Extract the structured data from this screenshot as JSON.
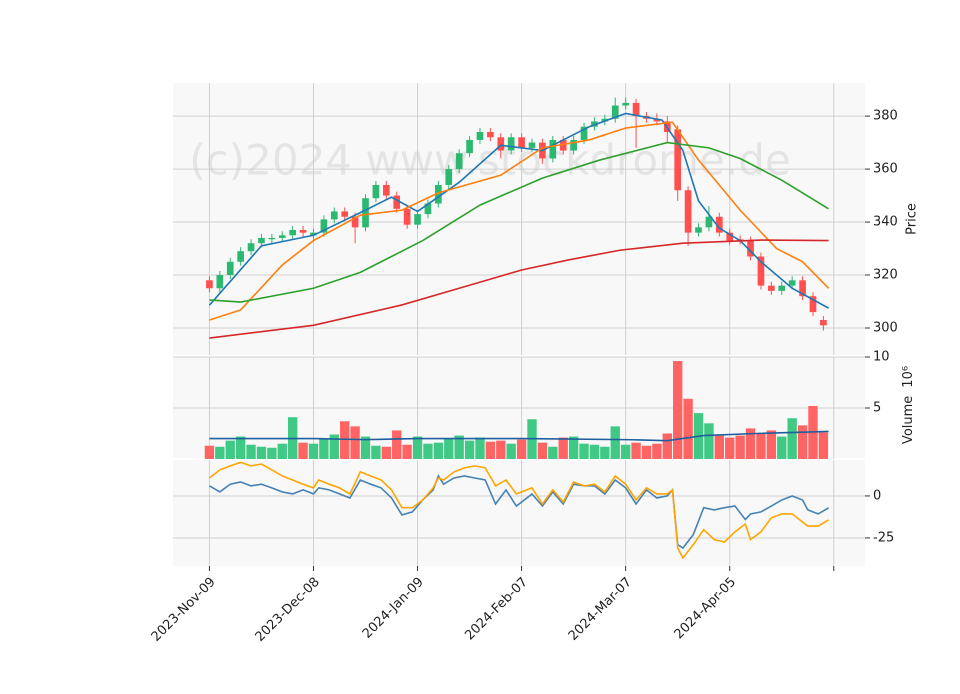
{
  "watermark": "(c)2024 www.stockdrome.de",
  "chart_data": [
    {
      "type": "candlestick",
      "ylabel": "Price",
      "up_color": "#2db872",
      "down_color": "#ff4f4f",
      "xlim": [
        -7,
        126
      ],
      "ylim": [
        289.8,
        392.5
      ],
      "yticks": [
        300,
        320,
        340,
        360,
        380
      ],
      "grid": true,
      "x": [
        0,
        2,
        4,
        6,
        8,
        10,
        12,
        14,
        16,
        18,
        20,
        22,
        24,
        26,
        28,
        30,
        32,
        34,
        36,
        38,
        40,
        42,
        44,
        46,
        48,
        50,
        52,
        54,
        56,
        58,
        60,
        62,
        64,
        66,
        68,
        70,
        72,
        74,
        76,
        78,
        80,
        82,
        84,
        86,
        88,
        90,
        92,
        94,
        96,
        98,
        100,
        102,
        104,
        106,
        108,
        110,
        112,
        114,
        116,
        118
      ],
      "open": [
        318,
        315,
        320,
        325,
        329,
        332,
        333.5,
        334,
        335,
        337,
        335,
        336,
        341,
        344,
        342,
        338,
        349,
        354,
        350,
        345,
        339,
        343,
        347,
        354,
        360,
        366,
        371,
        374,
        372,
        367,
        372,
        368,
        370,
        364,
        371,
        367,
        371,
        376,
        378,
        379,
        384,
        385,
        380,
        379,
        378,
        375,
        352,
        336,
        338,
        342,
        336,
        333.5,
        333,
        327,
        316,
        314,
        316,
        318,
        312,
        303
      ],
      "high": [
        319.5,
        321.5,
        326.5,
        330.5,
        333.5,
        335.5,
        335.5,
        336.5,
        338.5,
        338.5,
        337.5,
        342.5,
        345.5,
        345.5,
        343.5,
        350.5,
        355.5,
        355.5,
        351.5,
        346.5,
        344.5,
        348.5,
        355.5,
        361.5,
        367.5,
        372.5,
        375.5,
        375.5,
        373.5,
        373.5,
        373.5,
        371.5,
        371.5,
        372.5,
        372.5,
        372.5,
        377.5,
        379.5,
        380.5,
        387,
        387,
        386.5,
        381.5,
        381,
        380,
        376.5,
        353.5,
        339.5,
        346,
        343.5,
        337.5,
        335,
        334.5,
        328.5,
        317.5,
        317.5,
        319.5,
        319.5,
        313.5,
        304.5
      ],
      "low": [
        313.5,
        313.5,
        318.5,
        323.5,
        327.5,
        330.5,
        332,
        332.5,
        333.5,
        334.5,
        333.5,
        334.5,
        339.5,
        340.5,
        332,
        336.5,
        347.5,
        348.5,
        343.5,
        337.5,
        337.5,
        341.5,
        345.5,
        352.5,
        358.5,
        364.5,
        369.5,
        370.5,
        364,
        365.5,
        366.5,
        366.5,
        362,
        362.5,
        365.5,
        365.5,
        369.5,
        374.5,
        376.5,
        377.5,
        382.5,
        368,
        377.5,
        376.5,
        370,
        348,
        331,
        334.5,
        336.5,
        334.5,
        331.5,
        331.5,
        325.5,
        314.5,
        312.5,
        312.5,
        314.5,
        310.5,
        304.5,
        299
      ],
      "close": [
        315,
        320,
        325,
        329,
        332,
        334,
        334,
        335,
        337,
        336,
        336,
        341,
        344,
        342,
        338,
        349,
        354,
        350,
        345,
        339,
        343,
        347,
        354,
        360,
        366,
        371,
        374,
        372,
        367,
        372,
        368,
        370,
        364,
        371,
        367,
        371,
        376,
        378,
        379,
        384,
        385,
        380,
        379,
        378,
        374,
        352,
        336,
        338,
        342,
        336,
        333,
        333,
        327,
        316,
        314,
        316,
        318,
        312,
        306,
        301
      ],
      "lines": [
        {
          "color": "#1f77b4",
          "x": [
            0,
            10,
            20,
            30,
            35,
            40,
            48,
            56,
            64,
            73,
            80,
            87,
            91,
            94,
            98,
            102,
            106,
            112,
            119
          ],
          "values": [
            308.6,
            331,
            335,
            344.5,
            349.4,
            344,
            355,
            369,
            367,
            376,
            381,
            378.5,
            367,
            348,
            337.7,
            333,
            325,
            315,
            307.5
          ]
        },
        {
          "color": "#ff7f0e",
          "x": [
            0,
            6,
            14,
            20,
            29,
            37,
            44,
            56,
            64,
            73,
            80,
            89,
            94,
            102,
            109,
            114,
            119
          ],
          "values": [
            303,
            306.8,
            323.8,
            333,
            342.6,
            344.5,
            351,
            357.7,
            368,
            371,
            375.5,
            377.7,
            363.4,
            344.5,
            330,
            325,
            315
          ]
        },
        {
          "color": "#2ca02c",
          "x": [
            0,
            6,
            20,
            29,
            41,
            52,
            64,
            75,
            88,
            96,
            102,
            110,
            119
          ],
          "values": [
            310.6,
            309.8,
            315,
            321,
            333,
            346.4,
            356.6,
            363.4,
            370,
            368,
            364,
            355.8,
            345
          ]
        },
        {
          "color": "#d62728",
          "x": [
            0,
            20,
            37,
            48,
            60,
            69,
            79,
            91,
            106,
            119
          ],
          "values": [
            296.2,
            301,
            308.7,
            315,
            321.9,
            325.7,
            329.4,
            332,
            333.2,
            333
          ]
        }
      ]
    },
    {
      "type": "bar",
      "ylabel": "Volume",
      "offset_label": "10⁶",
      "up_color": "#3fc985",
      "down_color": "#ff6464",
      "xlim": [
        -7,
        126
      ],
      "ylim": [
        0,
        10
      ],
      "yticks": [
        5,
        10
      ],
      "grid": true,
      "x": [
        0,
        2,
        4,
        6,
        8,
        10,
        12,
        14,
        16,
        18,
        20,
        22,
        24,
        26,
        28,
        30,
        32,
        34,
        36,
        38,
        40,
        42,
        44,
        46,
        48,
        50,
        52,
        54,
        56,
        58,
        60,
        62,
        64,
        66,
        68,
        70,
        72,
        74,
        76,
        78,
        80,
        82,
        84,
        86,
        88,
        90,
        92,
        94,
        96,
        98,
        100,
        102,
        104,
        106,
        108,
        110,
        112,
        114,
        116,
        118
      ],
      "values": [
        1.3,
        1.2,
        1.8,
        2.2,
        1.4,
        1.2,
        1.1,
        1.5,
        4.1,
        1.6,
        1.5,
        2.0,
        2.4,
        3.7,
        3.2,
        2.2,
        1.3,
        1.2,
        2.8,
        1.4,
        2.2,
        1.5,
        1.6,
        2.0,
        2.3,
        1.8,
        2.1,
        1.7,
        1.8,
        1.5,
        1.9,
        3.9,
        1.6,
        1.2,
        2.1,
        2.2,
        1.5,
        1.4,
        1.2,
        3.2,
        1.4,
        1.6,
        1.3,
        1.5,
        2.5,
        9.6,
        5.9,
        4.5,
        3.5,
        2.3,
        2.1,
        2.3,
        3.0,
        2.5,
        2.8,
        2.2,
        4.0,
        3.3,
        5.2,
        2.6
      ],
      "lines": [
        {
          "color": "#1f5fa0",
          "x": [
            0,
            20,
            30,
            40,
            60,
            80,
            88,
            95,
            105,
            119
          ],
          "values": [
            2.0,
            2.0,
            1.9,
            2.0,
            2.0,
            1.9,
            1.8,
            2.3,
            2.5,
            2.7
          ]
        }
      ]
    },
    {
      "type": "line",
      "xlim": [
        -7,
        126
      ],
      "ylim": [
        -41.7,
        21.4
      ],
      "yticks": [
        0,
        -25
      ],
      "grid": true,
      "xticks": [
        {
          "value": 0,
          "label": "2023-Nov-09"
        },
        {
          "value": 20,
          "label": "2023-Dec-08"
        },
        {
          "value": 40,
          "label": "2024-Jan-09"
        },
        {
          "value": 60,
          "label": "2024-Feb-07"
        },
        {
          "value": 80,
          "label": "2024-Mar-07"
        },
        {
          "value": 100,
          "label": "2024-Apr-05"
        },
        {
          "value": 120,
          "label": null
        }
      ],
      "x": [
        0,
        2,
        4,
        6,
        8,
        10,
        12,
        14,
        16,
        18,
        20,
        21,
        23,
        25,
        27,
        29,
        31,
        33,
        35,
        37,
        39,
        41,
        43,
        44,
        45,
        47,
        49,
        51,
        53,
        55,
        57,
        59,
        62,
        64,
        66,
        68,
        70,
        72,
        74,
        76,
        78,
        80,
        82,
        84,
        86,
        88,
        89,
        90,
        91,
        93,
        95,
        97,
        99,
        101,
        103,
        104,
        106,
        108,
        110,
        112,
        114,
        115,
        117,
        119
      ],
      "series": [
        {
          "color": "#4682b4",
          "values": [
            6,
            2.4,
            7,
            8.3,
            6,
            7,
            4.8,
            2.4,
            1.2,
            3.6,
            1.2,
            4.8,
            3.6,
            1.2,
            -1.2,
            9.5,
            7,
            4.8,
            -1.2,
            -11.3,
            -9.5,
            -2.4,
            3.6,
            11.9,
            7,
            10.7,
            11.9,
            10.7,
            9.5,
            -4.8,
            3.6,
            -6,
            1.2,
            -6,
            2.4,
            -4.8,
            7,
            6,
            6,
            1.2,
            9.5,
            4.8,
            -4.8,
            3.6,
            -1.2,
            0,
            3.6,
            -29,
            -31,
            -23,
            -7,
            -8.3,
            -7,
            -6,
            -14,
            -10.7,
            -9.5,
            -6,
            -2.4,
            0,
            -2.4,
            -8.3,
            -10.7,
            -7.1
          ]
        },
        {
          "color": "#ffa500",
          "values": [
            10.7,
            15.5,
            17.9,
            20,
            17.9,
            19,
            15.5,
            11.9,
            9.5,
            7,
            4.8,
            9.5,
            7,
            4.8,
            1.2,
            14.3,
            11.9,
            9.5,
            3.6,
            -7,
            -7,
            -2.4,
            4.8,
            10.7,
            9.5,
            14.3,
            16.7,
            17.9,
            16.7,
            6,
            9.5,
            1.2,
            4.8,
            -4.8,
            3.6,
            -3.6,
            8.3,
            6,
            7,
            2.4,
            11.9,
            7,
            -2.4,
            4.8,
            1.2,
            1.2,
            3.6,
            -31,
            -36.9,
            -29,
            -20,
            -26,
            -27.4,
            -21.4,
            -16.7,
            -26,
            -21.4,
            -13,
            -10.7,
            -10.7,
            -15.5,
            -17.9,
            -17.9,
            -14.3
          ]
        }
      ]
    }
  ]
}
